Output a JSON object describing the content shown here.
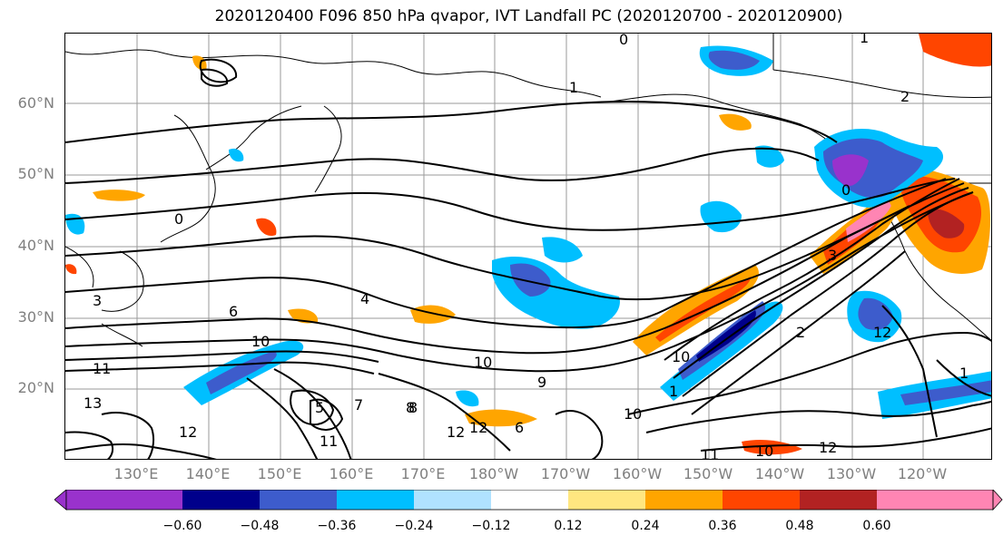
{
  "title": "2020120400 F096 850 hPa qvapor, IVT Landfall PC (2020120700 - 2020120900)",
  "latitude_labels": [
    "60°N",
    "50°N",
    "40°N",
    "30°N",
    "20°N"
  ],
  "longitude_labels": [
    "130°E",
    "140°E",
    "150°E",
    "160°E",
    "170°E",
    "180°W",
    "170°W",
    "160°W",
    "150°W",
    "140°W",
    "130°W",
    "120°W"
  ],
  "contour_labels": [
    "1",
    "0",
    "1",
    "2",
    "0",
    "3",
    "4",
    "6",
    "10",
    "11",
    "10",
    "12",
    "13",
    "12",
    "11",
    "12",
    "8",
    "9",
    "10",
    "10",
    "11",
    "12",
    "10",
    "12",
    "1",
    "2",
    "3",
    "5",
    "7",
    "8",
    "6",
    "1",
    "0"
  ],
  "colorbar": {
    "ticks": [
      "−0.60",
      "−0.48",
      "−0.36",
      "−0.24",
      "−0.12",
      "0.12",
      "0.24",
      "0.36",
      "0.48",
      "0.60"
    ],
    "colors": [
      "#9932cc",
      "#00008b",
      "#3d5ccc",
      "#00bfff",
      "#b0e2ff",
      "#ffffff",
      "#ffe680",
      "#ffa500",
      "#ff4500",
      "#b22222",
      "#ff85b3"
    ]
  }
}
